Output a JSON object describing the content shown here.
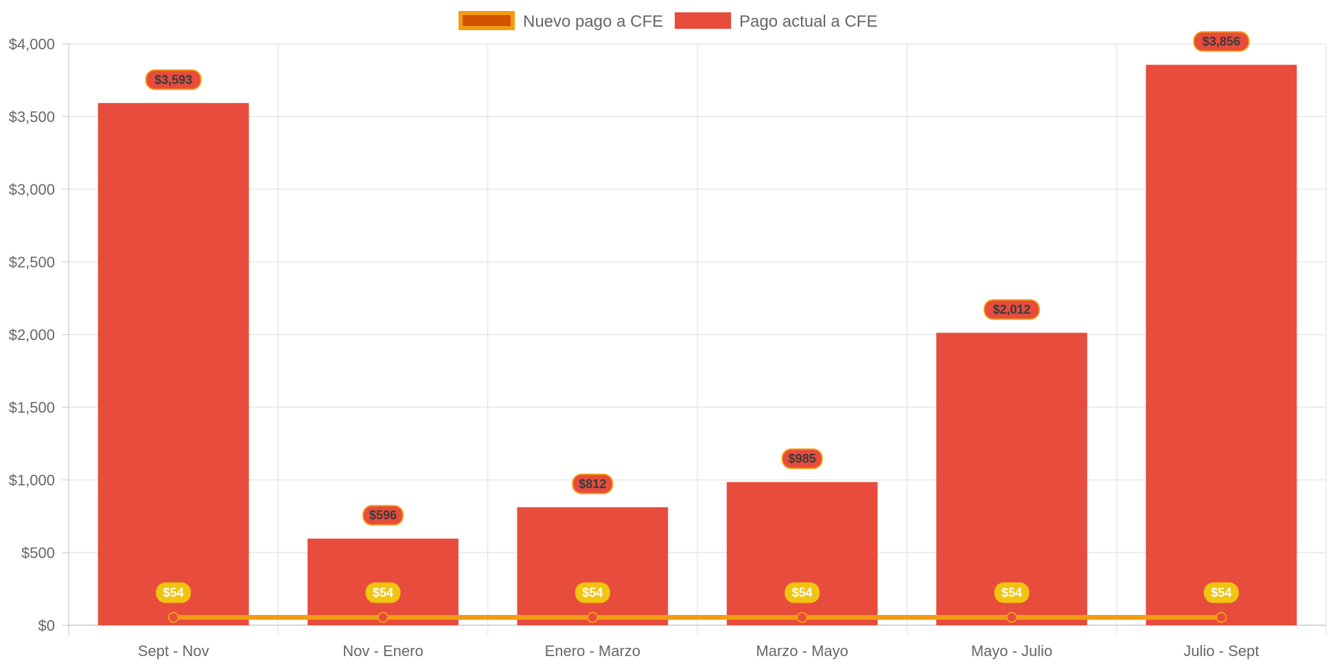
{
  "chart_data": {
    "type": "bar",
    "title": "",
    "xlabel": "",
    "ylabel": "",
    "ylim": [
      0,
      4000
    ],
    "y_ticks": [
      0,
      500,
      1000,
      1500,
      2000,
      2500,
      3000,
      3500,
      4000
    ],
    "y_tick_labels": [
      "$0",
      "$500",
      "$1,000",
      "$1,500",
      "$2,000",
      "$2,500",
      "$3,000",
      "$3,500",
      "$4,000"
    ],
    "grid": true,
    "legend_position": "top-center",
    "categories": [
      "Sept - Nov",
      "Nov - Enero",
      "Enero - Marzo",
      "Marzo - Mayo",
      "Mayo - Julio",
      "Julio - Sept"
    ],
    "series": [
      {
        "name": "Nuevo pago a CFE",
        "type": "line",
        "color": "#f39c12",
        "fill_color": "#d35400",
        "point_color": "#e74c3c",
        "label_color": "#f1c40f",
        "values": [
          54,
          54,
          54,
          54,
          54,
          54
        ],
        "data_labels": [
          "$54",
          "$54",
          "$54",
          "$54",
          "$54",
          "$54"
        ]
      },
      {
        "name": "Pago actual a CFE",
        "type": "bar",
        "color": "#e74c3c",
        "label_border_color": "#f39c12",
        "values": [
          3593,
          596,
          812,
          985,
          2012,
          3856
        ],
        "data_labels": [
          "$3,593",
          "$596",
          "$812",
          "$985",
          "$2,012",
          "$3,856"
        ]
      }
    ]
  }
}
